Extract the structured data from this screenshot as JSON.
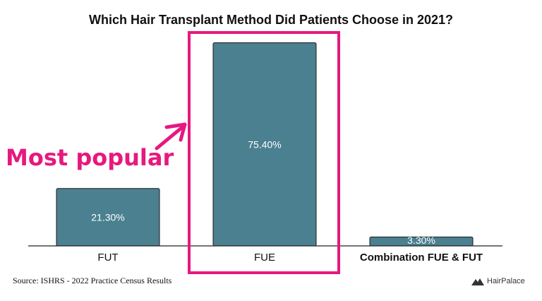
{
  "chart_data": {
    "type": "bar",
    "title": "Which Hair Transplant Method Did Patients Choose in 2021?",
    "categories": [
      "FUT",
      "FUE",
      "Combination FUE & FUT"
    ],
    "values": [
      21.3,
      75.4,
      3.3
    ],
    "value_labels": [
      "21.30%",
      "75.40%",
      "3.30%"
    ],
    "ylim": [
      0,
      80
    ],
    "grid": false,
    "bar_color": "#4a8090",
    "highlight_category": "FUE"
  },
  "annotation": {
    "text": "Most popular",
    "color": "#e6197f"
  },
  "source": "Source: ISHRS - 2022 Practice Census Results",
  "logo": {
    "text": "HairPalace",
    "icon": "mountain-logo-icon"
  }
}
